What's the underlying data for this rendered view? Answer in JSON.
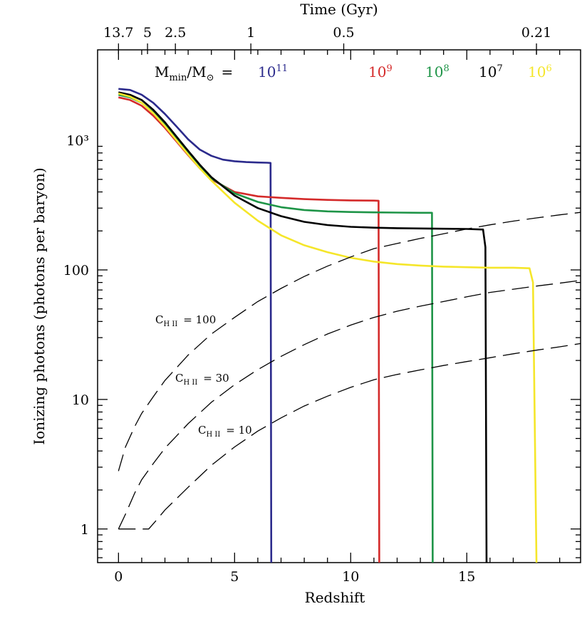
{
  "chart_data": {
    "type": "line",
    "title": "",
    "xlabel": "Redshift",
    "ylabel": "Ionizing photons (photons per baryon)",
    "top_xlabel": "Time (Gyr)",
    "xlim": [
      -0.9,
      19.9
    ],
    "ylim": [
      0.55,
      5000
    ],
    "yscale": "log",
    "x_ticks": [
      0,
      5,
      10,
      15
    ],
    "x_tick_labels": [
      "0",
      "5",
      "10",
      "15"
    ],
    "y_ticks": [
      1,
      10,
      100,
      1000
    ],
    "y_tick_labels": [
      "1",
      "10",
      "100",
      "10³"
    ],
    "top_ticks": [
      {
        "label": "13.7",
        "z": 0
      },
      {
        "label": "5",
        "z": 1.25
      },
      {
        "label": "2.5",
        "z": 2.45
      },
      {
        "label": "1",
        "z": 5.7
      },
      {
        "label": "0.5",
        "z": 9.7
      },
      {
        "label": "0.21",
        "z": 18.0
      }
    ],
    "legend": {
      "prefix_main": "M",
      "prefix_sub1": "min",
      "prefix_mid": "/M",
      "prefix_sub2": "⊙",
      "prefix_eq": "=",
      "items": [
        {
          "base": "10",
          "exp": "11",
          "color": "#2b2a8c"
        },
        {
          "base": "10",
          "exp": "9",
          "color": "#d42a2a"
        },
        {
          "base": "10",
          "exp": "8",
          "color": "#1e9447"
        },
        {
          "base": "10",
          "exp": "7",
          "color": "#000000"
        },
        {
          "base": "10",
          "exp": "6",
          "color": "#f5e62a"
        }
      ]
    },
    "series": [
      {
        "name": "10^11",
        "color": "#2b2a8c",
        "x": [
          0,
          0.5,
          1,
          1.5,
          2,
          2.5,
          3,
          3.5,
          4,
          4.5,
          5,
          5.5,
          6,
          6.4,
          6.55,
          6.58
        ],
        "y": [
          2500,
          2450,
          2250,
          1950,
          1600,
          1280,
          1020,
          850,
          760,
          710,
          690,
          680,
          675,
          672,
          670,
          0.55
        ]
      },
      {
        "name": "10^9",
        "color": "#d42a2a",
        "x": [
          0,
          0.5,
          1,
          1.5,
          2,
          2.5,
          3,
          3.5,
          4,
          5,
          6,
          7,
          8,
          9,
          10,
          11,
          11.2,
          11.23
        ],
        "y": [
          2150,
          2050,
          1850,
          1550,
          1250,
          980,
          770,
          610,
          500,
          400,
          370,
          360,
          352,
          347,
          344,
          343,
          342,
          0.55
        ]
      },
      {
        "name": "10^8",
        "color": "#1e9447",
        "x": [
          0,
          0.5,
          1,
          1.5,
          2,
          2.5,
          3,
          3.5,
          4,
          5,
          6,
          7,
          8,
          9,
          10,
          11,
          12,
          13,
          13.5,
          13.53
        ],
        "y": [
          2250,
          2150,
          1950,
          1650,
          1320,
          1030,
          800,
          630,
          510,
          390,
          335,
          305,
          290,
          283,
          280,
          278,
          277,
          276,
          276,
          0.55
        ]
      },
      {
        "name": "10^7",
        "color": "#000000",
        "x": [
          0,
          0.5,
          1,
          1.5,
          2,
          2.5,
          3,
          3.5,
          4,
          5,
          6,
          7,
          8,
          9,
          10,
          11,
          12,
          13,
          14,
          15,
          15.7,
          15.8,
          15.85
        ],
        "y": [
          2350,
          2250,
          2050,
          1720,
          1380,
          1070,
          830,
          650,
          520,
          375,
          300,
          260,
          235,
          222,
          215,
          212,
          210,
          209,
          208,
          207,
          205,
          150,
          0.55
        ]
      },
      {
        "name": "10^6",
        "color": "#f5e62a",
        "x": [
          0,
          0.5,
          1,
          1.5,
          2,
          2.5,
          3,
          3.5,
          4,
          5,
          6,
          7,
          8,
          9,
          10,
          11,
          12,
          13,
          14,
          15,
          16,
          17,
          17.7,
          17.85,
          18.0
        ],
        "y": [
          2300,
          2180,
          1950,
          1620,
          1290,
          1000,
          780,
          610,
          490,
          330,
          240,
          185,
          155,
          137,
          124,
          116,
          111,
          108,
          106,
          105,
          104,
          104,
          103,
          80,
          0.55
        ]
      }
    ],
    "dashed_series": [
      {
        "label_main": "C",
        "label_sub": "H II",
        "label_eq": "= 100",
        "x": [
          0,
          0.3,
          0.7,
          1,
          1.5,
          2,
          3,
          4,
          5,
          6,
          7,
          8,
          9,
          10,
          11,
          12,
          13,
          14,
          15,
          16,
          17,
          18,
          19,
          19.9
        ],
        "y": [
          2.8,
          4.3,
          6.2,
          7.8,
          10.5,
          14,
          22,
          32,
          43,
          57,
          72,
          89,
          107,
          126,
          146,
          160,
          175,
          190,
          207,
          223,
          238,
          252,
          266,
          278
        ]
      },
      {
        "label_main": "C",
        "label_sub": "H II",
        "label_eq": "= 30",
        "x": [
          0,
          0.3,
          0.7,
          1,
          1.5,
          2,
          3,
          4,
          5,
          6,
          7,
          8,
          9,
          10,
          11,
          12,
          13,
          14,
          15,
          16,
          17,
          18,
          19,
          19.9
        ],
        "y": [
          1,
          1.3,
          1.9,
          2.4,
          3.2,
          4.2,
          6.5,
          9.5,
          13,
          17,
          21.5,
          26.5,
          32,
          37.5,
          43,
          48,
          52.5,
          57,
          62,
          67,
          71,
          75,
          79,
          83
        ]
      },
      {
        "label_main": "C",
        "label_sub": "H II",
        "label_eq": "= 10",
        "x": [
          0,
          1.3,
          1.6,
          2,
          3,
          4,
          5,
          6,
          7,
          8,
          9,
          10,
          11,
          12,
          13,
          14,
          15,
          16,
          17,
          18,
          19,
          19.9
        ],
        "y": [
          1,
          1,
          1.15,
          1.4,
          2.1,
          3.1,
          4.3,
          5.7,
          7.2,
          8.9,
          10.6,
          12.4,
          14.2,
          15.6,
          16.9,
          18.3,
          19.6,
          21,
          22.5,
          24,
          25.5,
          27
        ]
      }
    ]
  }
}
